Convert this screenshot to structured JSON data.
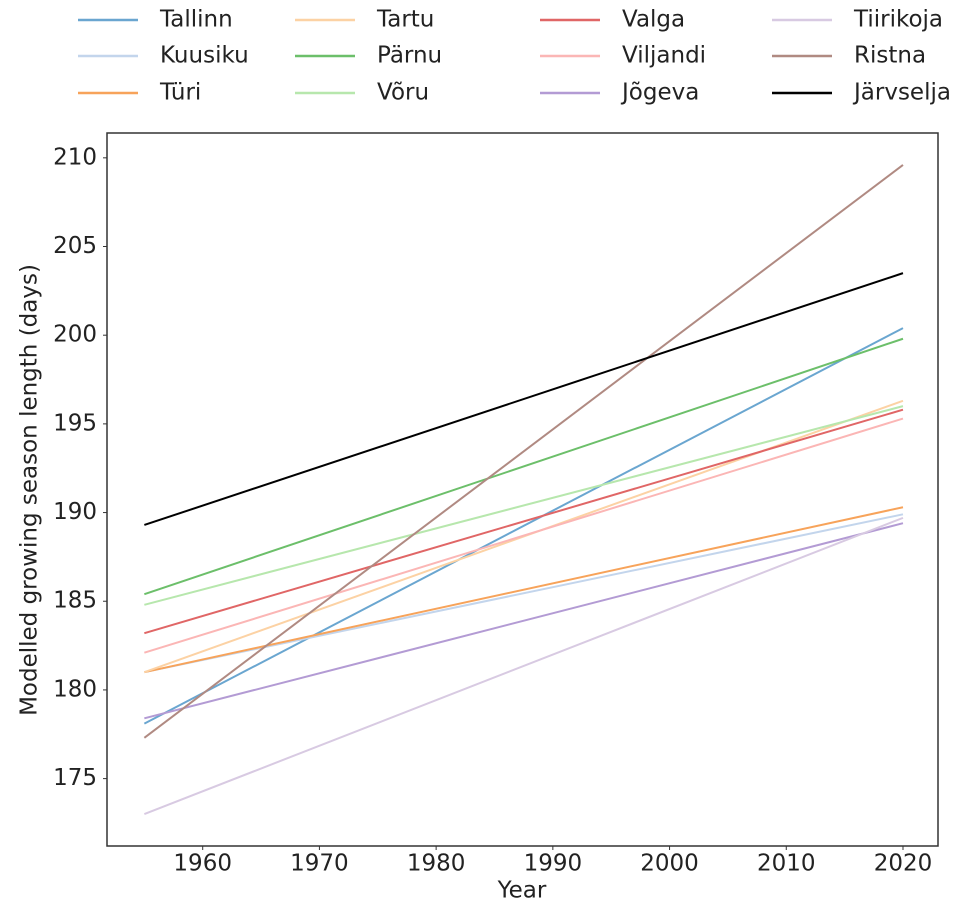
{
  "chart_data": {
    "type": "line",
    "x_label": "Year",
    "y_label": "Modelled growing season length (days)",
    "x": [
      1955,
      2020
    ],
    "series": [
      {
        "name": "Tallinn",
        "color": "#6aa6d0",
        "values": [
          178.1,
          200.4
        ]
      },
      {
        "name": "Kuusiku",
        "color": "#c3d5ec",
        "values": [
          181.0,
          189.9
        ]
      },
      {
        "name": "Türi",
        "color": "#f7a35a",
        "values": [
          181.0,
          190.3
        ]
      },
      {
        "name": "Tartu",
        "color": "#fcd2a4",
        "values": [
          181.0,
          196.3
        ]
      },
      {
        "name": "Pärnu",
        "color": "#6cbf6a",
        "values": [
          185.4,
          199.8
        ]
      },
      {
        "name": "Võru",
        "color": "#b7e7ad",
        "values": [
          184.8,
          196.0
        ]
      },
      {
        "name": "Valga",
        "color": "#e06666",
        "values": [
          183.2,
          195.8
        ]
      },
      {
        "name": "Viljandi",
        "color": "#fbb6b5",
        "values": [
          182.1,
          195.3
        ]
      },
      {
        "name": "Jõgeva",
        "color": "#b39bd4",
        "values": [
          178.4,
          189.4
        ]
      },
      {
        "name": "Tiirikoja",
        "color": "#d8cae2",
        "values": [
          173.0,
          189.7
        ]
      },
      {
        "name": "Ristna",
        "color": "#b08a82",
        "values": [
          177.3,
          209.6
        ]
      },
      {
        "name": "Järvselja",
        "color": "#000000",
        "values": [
          189.3,
          203.5
        ]
      }
    ],
    "xlim": [
      1951.8,
      2023
    ],
    "ylim": [
      171.2,
      211.4
    ],
    "xticks": [
      1960,
      1970,
      1980,
      1990,
      2000,
      2010,
      2020
    ],
    "yticks": [
      175,
      180,
      185,
      190,
      195,
      200,
      205,
      210
    ],
    "grid": false,
    "legend": "top"
  }
}
